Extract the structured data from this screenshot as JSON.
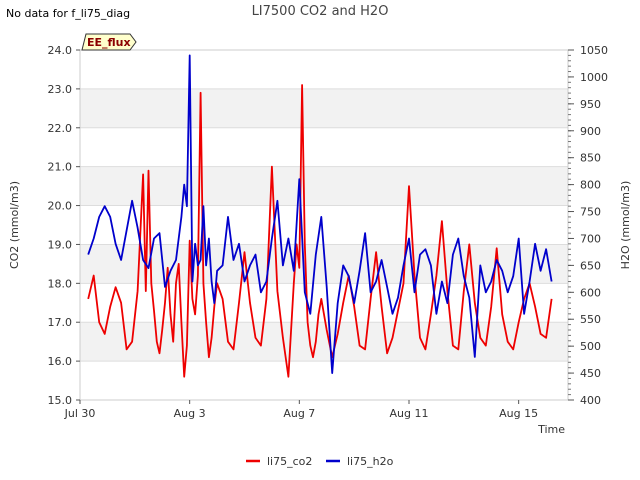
{
  "header": {
    "notice": "No data for f_li75_diag",
    "badge": "EE_flux"
  },
  "chart_data": {
    "type": "line",
    "title": "LI7500 CO2 and H2O",
    "xlabel": "Time",
    "ylabel_left": "CO2 (mmol/m3)",
    "ylabel_right": "H2O (mmol/m3)",
    "x_unit": "days since Jul 30",
    "xlim": [
      0,
      17.8
    ],
    "ylim_left": [
      15.0,
      24.0
    ],
    "ylim_right": [
      400,
      1050
    ],
    "x_ticks": [
      {
        "x": 0,
        "label": "Jul 30"
      },
      {
        "x": 4,
        "label": "Aug 3"
      },
      {
        "x": 8,
        "label": "Aug 7"
      },
      {
        "x": 12,
        "label": "Aug 11"
      },
      {
        "x": 16,
        "label": "Aug 15"
      }
    ],
    "y_ticks_left": [
      "15.0",
      "16.0",
      "17.0",
      "18.0",
      "19.0",
      "20.0",
      "21.0",
      "22.0",
      "23.0",
      "24.0"
    ],
    "y_ticks_right": [
      "400",
      "450",
      "500",
      "550",
      "600",
      "650",
      "700",
      "750",
      "800",
      "850",
      "900",
      "950",
      "1000",
      "1050"
    ],
    "grid": true,
    "legend_position": "bottom-center",
    "series": [
      {
        "name": "li75_co2",
        "axis": "left",
        "color": "#ee0000",
        "x": [
          0.3,
          0.5,
          0.7,
          0.9,
          1.1,
          1.3,
          1.5,
          1.7,
          1.9,
          2.1,
          2.3,
          2.4,
          2.5,
          2.6,
          2.7,
          2.8,
          2.9,
          3.0,
          3.1,
          3.2,
          3.3,
          3.4,
          3.5,
          3.6,
          3.7,
          3.8,
          3.9,
          4.0,
          4.1,
          4.2,
          4.3,
          4.4,
          4.5,
          4.6,
          4.7,
          4.8,
          4.9,
          5.0,
          5.2,
          5.4,
          5.6,
          5.8,
          6.0,
          6.2,
          6.4,
          6.6,
          6.8,
          7.0,
          7.2,
          7.4,
          7.6,
          7.8,
          7.9,
          8.0,
          8.1,
          8.2,
          8.3,
          8.4,
          8.5,
          8.6,
          8.7,
          8.8,
          9.0,
          9.2,
          9.4,
          9.6,
          9.8,
          10.0,
          10.2,
          10.4,
          10.6,
          10.8,
          11.0,
          11.2,
          11.4,
          11.6,
          11.8,
          12.0,
          12.2,
          12.4,
          12.6,
          12.8,
          13.0,
          13.2,
          13.4,
          13.6,
          13.8,
          14.0,
          14.2,
          14.4,
          14.6,
          14.8,
          15.0,
          15.2,
          15.4,
          15.6,
          15.8,
          16.0,
          16.2,
          16.4,
          16.6,
          16.8,
          17.0,
          17.2
        ],
        "values": [
          17.6,
          18.2,
          17.0,
          16.7,
          17.4,
          17.9,
          17.5,
          16.3,
          16.5,
          17.8,
          20.8,
          17.8,
          20.9,
          18.0,
          17.3,
          16.5,
          16.2,
          16.8,
          17.5,
          18.4,
          17.2,
          16.5,
          18.0,
          18.5,
          17.0,
          15.6,
          16.4,
          19.1,
          17.6,
          17.2,
          18.2,
          22.9,
          18.0,
          17.0,
          16.1,
          16.6,
          17.4,
          18.0,
          17.6,
          16.5,
          16.3,
          17.5,
          18.8,
          17.5,
          16.6,
          16.4,
          17.6,
          21.0,
          17.8,
          16.6,
          15.6,
          18.0,
          19.0,
          18.4,
          23.1,
          19.0,
          17.0,
          16.4,
          16.1,
          16.5,
          17.2,
          17.6,
          16.8,
          16.1,
          16.7,
          17.5,
          18.2,
          17.4,
          16.4,
          16.3,
          17.6,
          18.8,
          17.4,
          16.2,
          16.6,
          17.3,
          18.0,
          20.5,
          18.2,
          16.6,
          16.3,
          17.2,
          18.2,
          19.6,
          17.8,
          16.4,
          16.3,
          17.8,
          19.0,
          17.5,
          16.6,
          16.4,
          17.4,
          18.9,
          17.2,
          16.5,
          16.3,
          17.0,
          17.6,
          18.0,
          17.4,
          16.7,
          16.6,
          17.6
        ]
      },
      {
        "name": "li75_h2o",
        "axis": "right",
        "color": "#0000cc",
        "x": [
          0.3,
          0.5,
          0.7,
          0.9,
          1.1,
          1.3,
          1.5,
          1.7,
          1.9,
          2.1,
          2.3,
          2.5,
          2.7,
          2.9,
          3.1,
          3.3,
          3.5,
          3.7,
          3.8,
          3.9,
          4.0,
          4.1,
          4.2,
          4.3,
          4.4,
          4.5,
          4.6,
          4.7,
          4.8,
          4.9,
          5.0,
          5.2,
          5.4,
          5.6,
          5.8,
          6.0,
          6.2,
          6.4,
          6.6,
          6.8,
          7.0,
          7.2,
          7.4,
          7.6,
          7.8,
          8.0,
          8.2,
          8.4,
          8.6,
          8.8,
          9.0,
          9.2,
          9.4,
          9.6,
          9.8,
          10.0,
          10.2,
          10.4,
          10.6,
          10.8,
          11.0,
          11.2,
          11.4,
          11.6,
          11.8,
          12.0,
          12.2,
          12.4,
          12.6,
          12.8,
          13.0,
          13.2,
          13.4,
          13.6,
          13.8,
          14.0,
          14.2,
          14.4,
          14.6,
          14.8,
          15.0,
          15.2,
          15.4,
          15.6,
          15.8,
          16.0,
          16.2,
          16.4,
          16.6,
          16.8,
          17.0,
          17.2
        ],
        "values": [
          670,
          700,
          740,
          760,
          740,
          690,
          660,
          715,
          770,
          720,
          660,
          645,
          700,
          710,
          610,
          640,
          660,
          740,
          800,
          760,
          1040,
          620,
          690,
          650,
          660,
          760,
          650,
          700,
          620,
          580,
          640,
          650,
          740,
          660,
          690,
          620,
          650,
          670,
          600,
          620,
          700,
          770,
          650,
          700,
          640,
          810,
          600,
          560,
          670,
          740,
          610,
          450,
          580,
          650,
          630,
          580,
          640,
          710,
          600,
          620,
          660,
          610,
          560,
          590,
          650,
          700,
          600,
          670,
          680,
          650,
          560,
          620,
          580,
          670,
          700,
          630,
          590,
          480,
          650,
          600,
          620,
          660,
          640,
          600,
          630,
          700,
          560,
          620,
          690,
          640,
          680,
          620
        ]
      }
    ]
  }
}
